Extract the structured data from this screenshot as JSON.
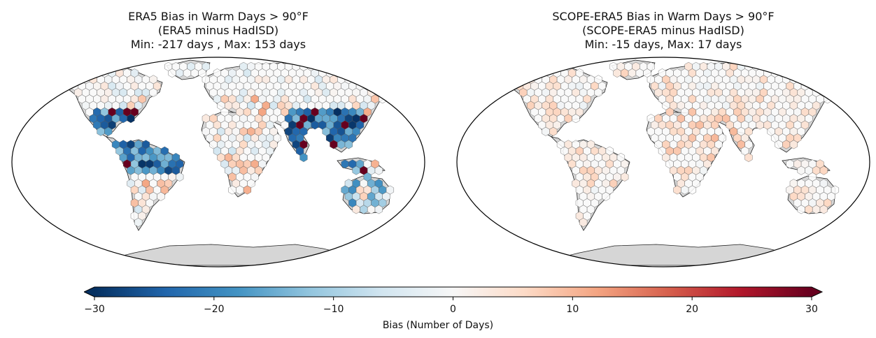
{
  "panels": [
    {
      "title_line1": "ERA5 Bias in Warm Days > 90°F",
      "title_line2": "(ERA5 minus HadISD)",
      "title_line3": "Min: -217 days , Max: 153 days"
    },
    {
      "title_line1": "SCOPE-ERA5 Bias in Warm Days > 90°F",
      "title_line2": "(SCOPE-ERA5 minus HadISD)",
      "title_line3": "Min: -15 days, Max: 17 days"
    }
  ],
  "colorbar": {
    "label": "Bias (Number of Days)",
    "ticks": [
      "−30",
      "−20",
      "−10",
      "0",
      "10",
      "20",
      "30"
    ],
    "tick_values": [
      -30,
      -20,
      -10,
      0,
      10,
      20,
      30
    ],
    "range": [
      -30,
      30
    ],
    "colormap": "RdBu_r",
    "colors": [
      "#053061",
      "#2166ac",
      "#4393c3",
      "#92c5de",
      "#d1e5f0",
      "#f7f7f7",
      "#fddbc7",
      "#f4a582",
      "#d6604d",
      "#b2182b",
      "#67001f"
    ]
  },
  "land_color": "#d6d6d6",
  "empty_hex_color": "#ffffff"
}
